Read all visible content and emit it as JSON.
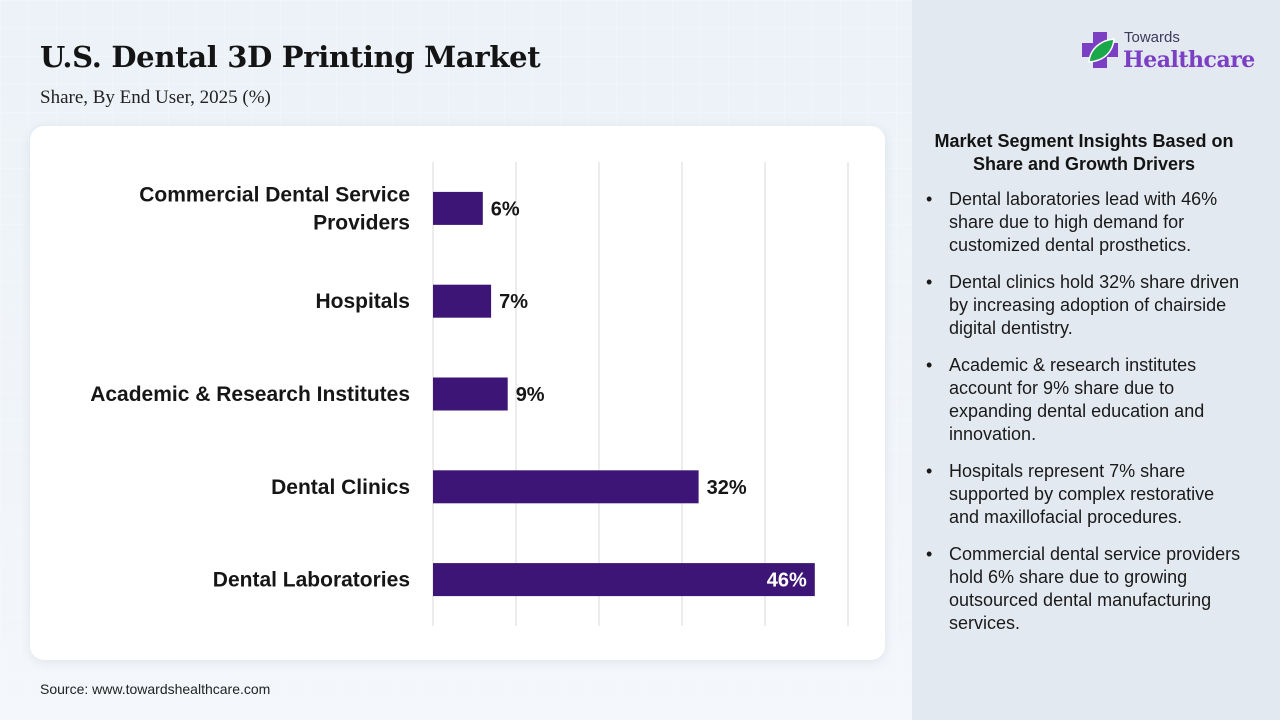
{
  "header": {
    "title": "U.S. Dental 3D Printing Market",
    "subtitle": "Share, By End User, 2025 (%)"
  },
  "brand": {
    "line1": "Towards",
    "line2": "Healthcare",
    "icon": "medical-cross-leaf-logo",
    "colors": {
      "cross": "#7b3fc4",
      "leaf": "#1ba84a"
    }
  },
  "chart_data": {
    "type": "bar",
    "orientation": "horizontal",
    "categories": [
      "Commercial Dental Service Providers",
      "Hospitals",
      "Academic & Research Institutes",
      "Dental Clinics",
      "Dental Laboratories"
    ],
    "category_lines": [
      [
        "Commercial Dental Service",
        "Providers"
      ],
      [
        "Hospitals"
      ],
      [
        "Academic & Research Institutes"
      ],
      [
        "Dental Clinics"
      ],
      [
        "Dental Laboratories"
      ]
    ],
    "values": [
      6,
      7,
      9,
      32,
      46
    ],
    "value_labels": [
      "6%",
      "7%",
      "9%",
      "32%",
      "46%"
    ],
    "xlim": [
      0,
      50
    ],
    "grid": true,
    "bar_color": "#3c1576",
    "label_inside_last": true
  },
  "source": "Source: www.towardshealthcare.com",
  "insights": {
    "title": "Market Segment Insights Based on Share and Growth Drivers",
    "bullet": "•",
    "items": [
      "Dental laboratories lead with 46% share due to high demand for customized dental prosthetics.",
      "Dental clinics hold 32% share driven by increasing adoption of chairside digital dentistry.",
      "Academic & research institutes account for 9% share due to expanding dental education and innovation.",
      "Hospitals represent 7% share supported by complex restorative and maxillofacial procedures.",
      "Commercial dental service providers hold 6% share due to growing outsourced dental manufacturing services."
    ]
  }
}
